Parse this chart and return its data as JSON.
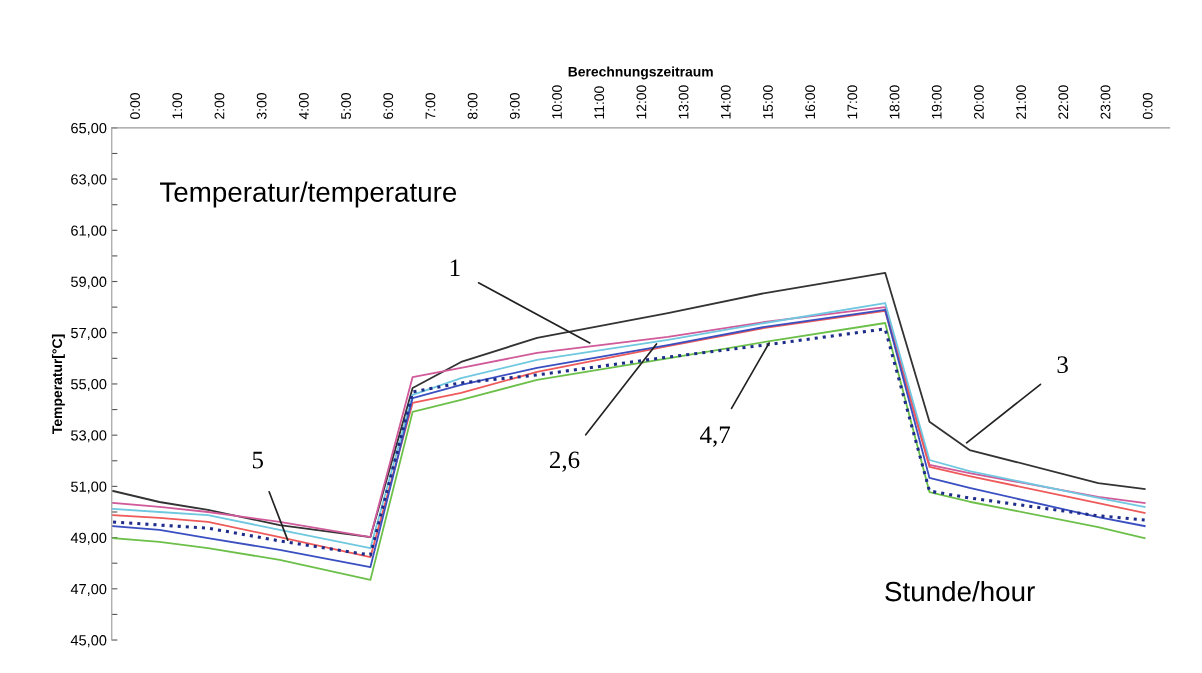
{
  "chart_data": {
    "type": "line",
    "xlabel": "Berechnungszeitraum",
    "ylabel": "Temperatur[°C]",
    "x": [
      -0.55,
      0.55,
      1.7,
      3.4,
      5.55,
      6.55,
      7.7,
      9.5,
      12.6,
      14.9,
      17.75,
      18.8,
      19.75,
      22.8,
      23.9
    ],
    "series": [
      {
        "color": "#333333",
        "values": [
          50.82,
          50.39,
          50.08,
          49.49,
          49.02,
          54.84,
          55.86,
          56.8,
          57.77,
          58.55,
          59.34,
          53.52,
          52.42,
          51.13,
          50.9
        ]
      },
      {
        "color": "#d05a9a",
        "values": [
          50.35,
          50.2,
          50.0,
          49.61,
          49.02,
          55.27,
          55.63,
          56.21,
          56.84,
          57.42,
          58.0,
          51.84,
          51.52,
          50.59,
          50.35
        ]
      },
      {
        "color": "#6fc8e0",
        "values": [
          50.12,
          50.0,
          49.88,
          49.3,
          48.59,
          54.57,
          55.23,
          55.94,
          56.72,
          57.38,
          58.16,
          52.03,
          51.6,
          50.55,
          50.2
        ]
      },
      {
        "color": "#ee5a5a",
        "values": [
          49.88,
          49.77,
          49.61,
          49.02,
          48.24,
          54.26,
          54.65,
          55.47,
          56.48,
          57.19,
          57.85,
          51.76,
          51.4,
          50.35,
          49.96
        ]
      },
      {
        "color": "#6cc04a",
        "values": [
          48.98,
          48.83,
          48.59,
          48.13,
          47.35,
          53.91,
          54.38,
          55.16,
          56.0,
          56.64,
          57.38,
          50.78,
          50.4,
          49.41,
          48.98
        ]
      },
      {
        "color": "#3a4fc0",
        "values": [
          49.45,
          49.3,
          48.98,
          48.52,
          47.85,
          54.45,
          54.96,
          55.63,
          56.52,
          57.23,
          57.89,
          51.33,
          50.94,
          49.8,
          49.45
        ]
      },
      {
        "color": "#1f2d8a",
        "line_style": "dotted",
        "values": [
          49.61,
          49.49,
          49.37,
          48.87,
          48.32,
          54.69,
          55.04,
          55.35,
          56.05,
          56.52,
          57.15,
          50.82,
          50.55,
          49.85,
          49.69
        ]
      }
    ],
    "xlim": [
      -0.58,
      24.49
    ],
    "xticks": [
      {
        "value": 0,
        "label": "0:00"
      },
      {
        "value": 1,
        "label": "1:00"
      },
      {
        "value": 2,
        "label": "2:00"
      },
      {
        "value": 3,
        "label": "3:00"
      },
      {
        "value": 4,
        "label": "4:00"
      },
      {
        "value": 5,
        "label": "5:00"
      },
      {
        "value": 6,
        "label": "6:00"
      },
      {
        "value": 7,
        "label": "7:00"
      },
      {
        "value": 8,
        "label": "8:00"
      },
      {
        "value": 9,
        "label": "9:00"
      },
      {
        "value": 10,
        "label": "10:00"
      },
      {
        "value": 11,
        "label": "11:00"
      },
      {
        "value": 12,
        "label": "12:00"
      },
      {
        "value": 13,
        "label": "13:00"
      },
      {
        "value": 14,
        "label": "14:00"
      },
      {
        "value": 15,
        "label": "15:00"
      },
      {
        "value": 16,
        "label": "16:00"
      },
      {
        "value": 17,
        "label": "17:00"
      },
      {
        "value": 18,
        "label": "18:00"
      },
      {
        "value": 19,
        "label": "19:00"
      },
      {
        "value": 20,
        "label": "20:00"
      },
      {
        "value": 21,
        "label": "21:00"
      },
      {
        "value": 22,
        "label": "22:00"
      },
      {
        "value": 23,
        "label": "23:00"
      },
      {
        "value": 24,
        "label": "0:00"
      }
    ],
    "ylim": [
      45,
      65
    ],
    "yticks": [
      {
        "value": 45,
        "label": "45,00"
      },
      {
        "value": 46,
        "label": null
      },
      {
        "value": 47,
        "label": "47,00"
      },
      {
        "value": 48,
        "label": null
      },
      {
        "value": 49,
        "label": "49,00"
      },
      {
        "value": 50,
        "label": null
      },
      {
        "value": 51,
        "label": "51,00"
      },
      {
        "value": 52,
        "label": null
      },
      {
        "value": 53,
        "label": "53,00"
      },
      {
        "value": 54,
        "label": null
      },
      {
        "value": 55,
        "label": "55,00"
      },
      {
        "value": 56,
        "label": null
      },
      {
        "value": 57,
        "label": "57,00"
      },
      {
        "value": 58,
        "label": null
      },
      {
        "value": 59,
        "label": "59,00"
      },
      {
        "value": 60,
        "label": null
      },
      {
        "value": 61,
        "label": "61,00"
      },
      {
        "value": 62,
        "label": null
      },
      {
        "value": 63,
        "label": "63,00"
      },
      {
        "value": 64,
        "label": null
      },
      {
        "value": 65,
        "label": "65,00"
      }
    ],
    "grid": false,
    "legend": false,
    "marker": "none",
    "line_style": "solid",
    "annotations": [
      "Temperatur/temperature",
      "Stunde/hour",
      {
        "text": "1",
        "x": 10.75,
        "y": 56.6
      },
      {
        "text": "2,6",
        "x": 12.33,
        "y": 56.56
      },
      {
        "text": "4,7",
        "x": 15.0,
        "y": 56.6
      },
      {
        "text": "3",
        "x": 19.68,
        "y": 52.7
      },
      {
        "text": "5",
        "x": 3.59,
        "y": 48.9
      }
    ]
  }
}
